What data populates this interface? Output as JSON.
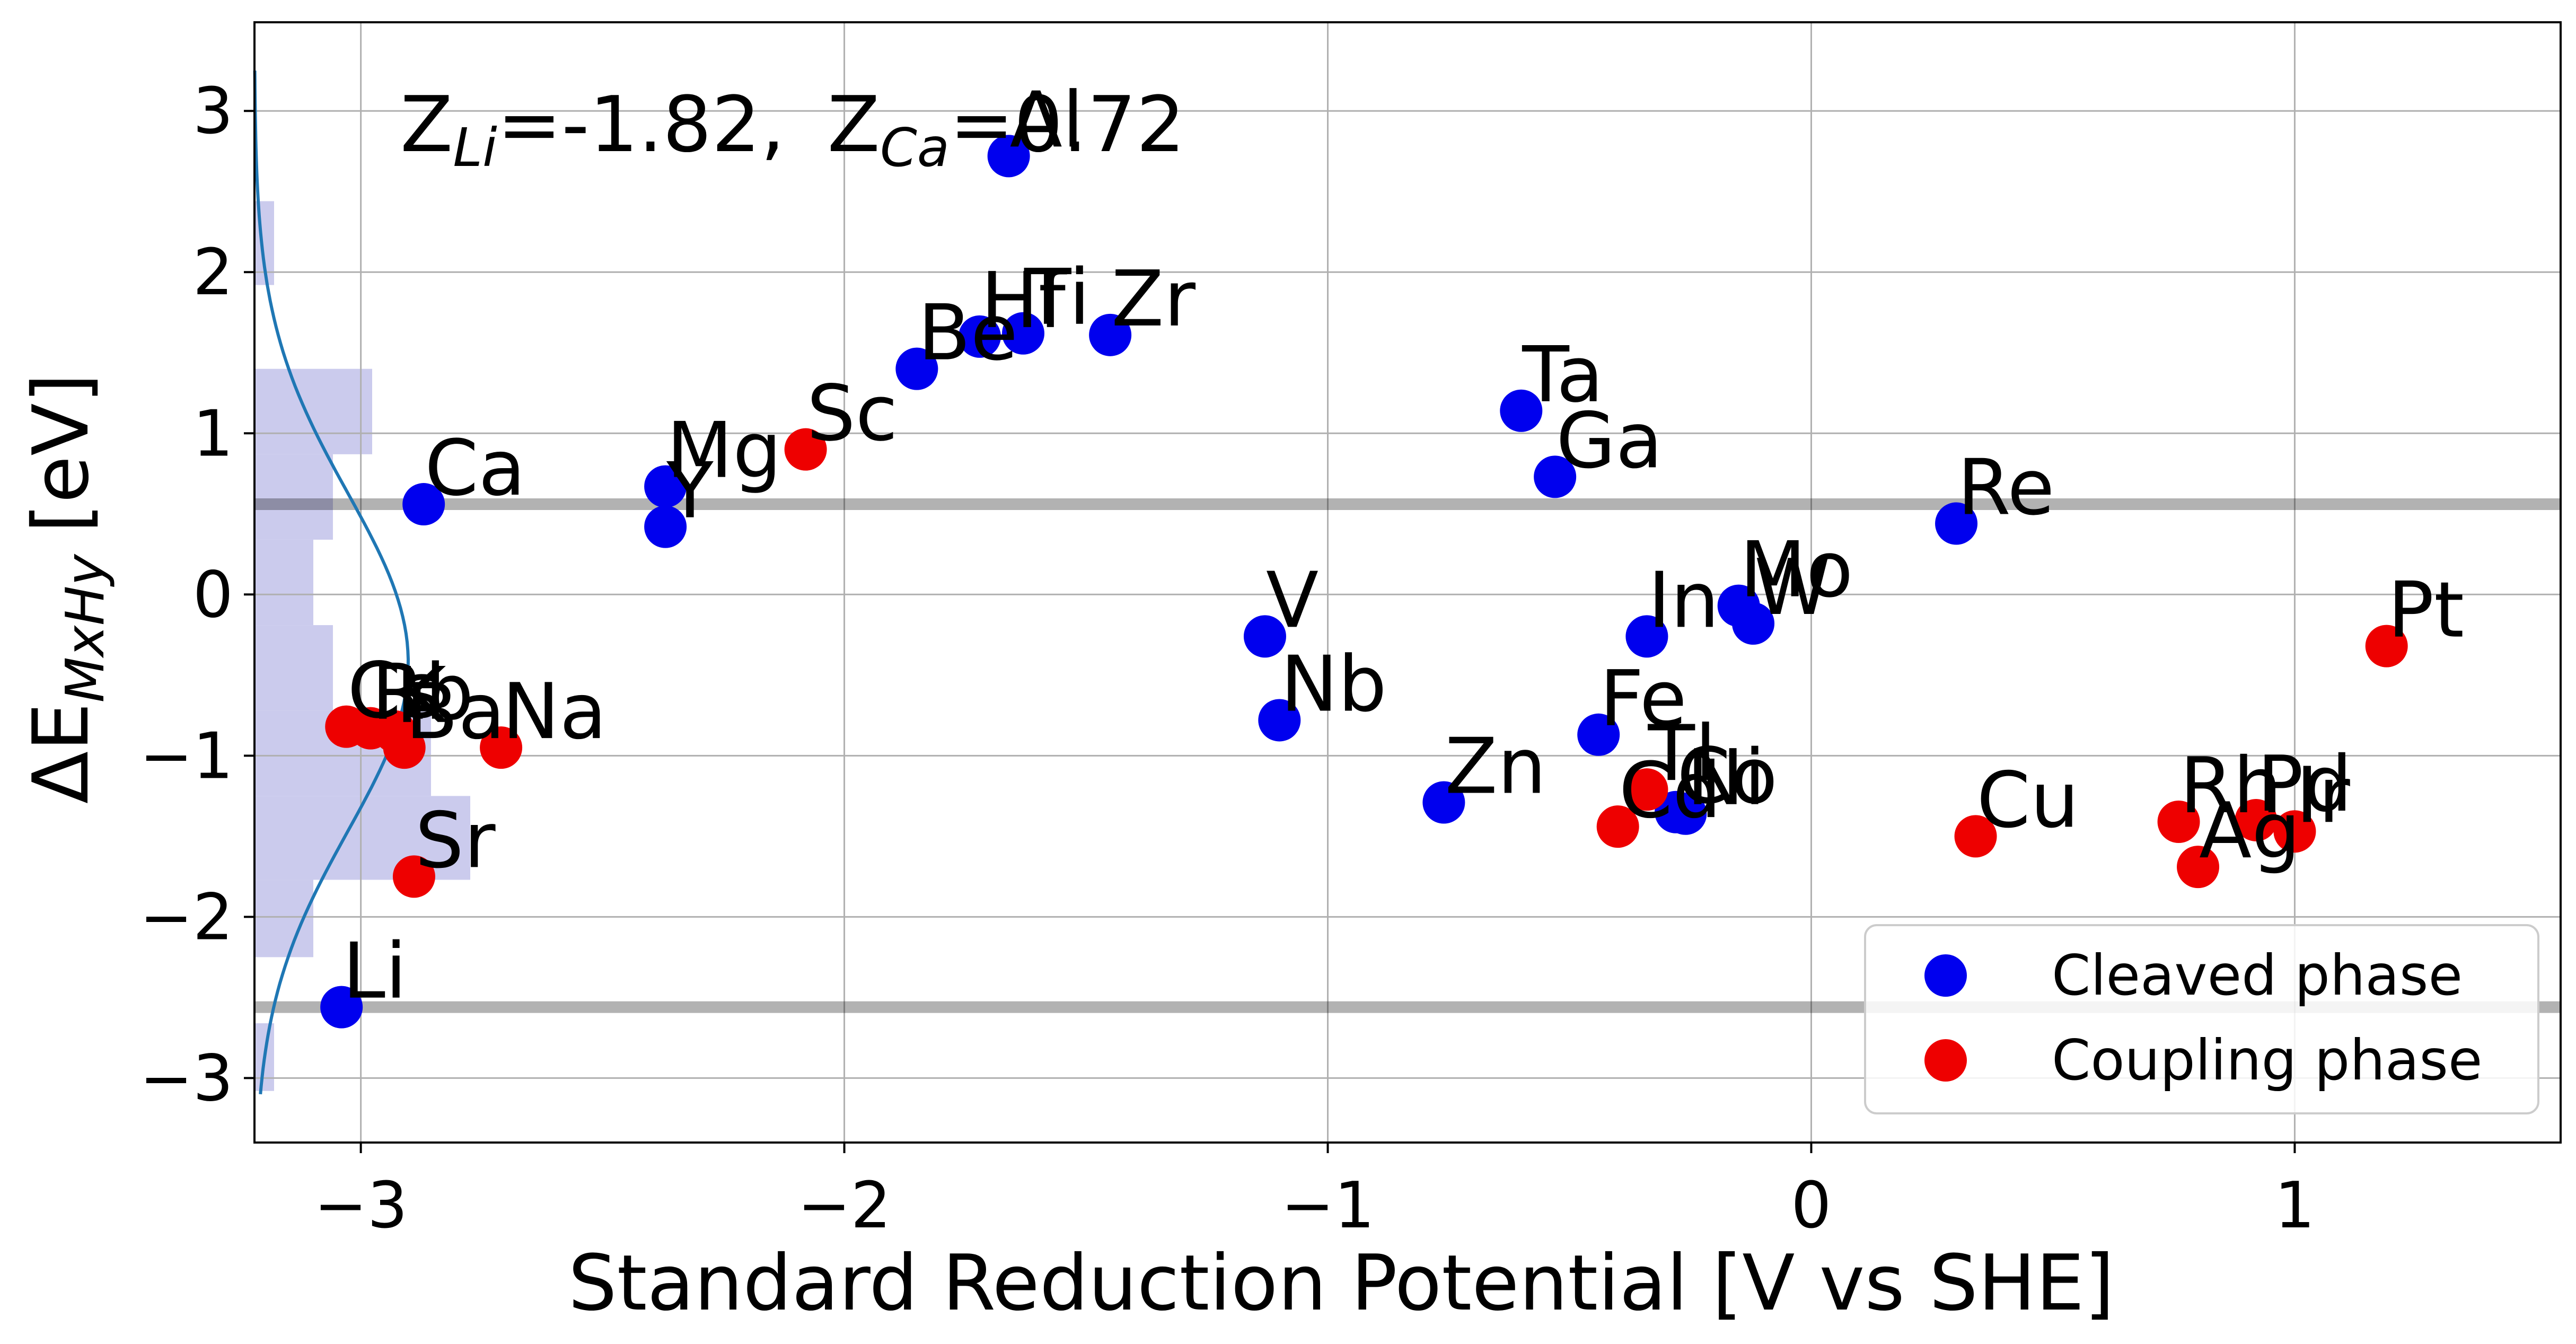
{
  "chart_data": {
    "type": "scatter",
    "xlabel": "Standard Reduction Potential [V vs SHE]",
    "ylabel": "ΔE",
    "ylabel_sub": "MxHy",
    "ylabel_unit": "[eV]",
    "xlim": [
      -3.22,
      1.55
    ],
    "ylim": [
      -3.4,
      3.55
    ],
    "xticks": [
      -3,
      -2,
      -1,
      0,
      1
    ],
    "xtick_labels": [
      "−3",
      "−2",
      "−1",
      "0",
      "1"
    ],
    "yticks": [
      -3,
      -2,
      -1,
      0,
      1,
      2,
      3
    ],
    "ytick_labels": [
      "−3",
      "−2",
      "−1",
      "0",
      "1",
      "2",
      "3"
    ],
    "grid": true,
    "legend_position": "bottom-right",
    "annotation": {
      "z_li": "Z",
      "z_li_sub": "Li",
      "z_li_val": "=-1.82,",
      "z_ca": "Z",
      "z_ca_sub": "Ca",
      "z_ca_val": "=0.72"
    },
    "hlines": [
      0.56,
      -2.56
    ],
    "histogram": {
      "color": "#c8c8ec",
      "bins": [
        {
          "y0": -3.08,
          "y1": -2.66,
          "count": 1
        },
        {
          "y0": -2.66,
          "y1": -2.25,
          "count": 0
        },
        {
          "y0": -2.25,
          "y1": -1.77,
          "count": 3
        },
        {
          "y0": -1.77,
          "y1": -1.25,
          "count": 11
        },
        {
          "y0": -1.25,
          "y1": -0.72,
          "count": 9
        },
        {
          "y0": -0.72,
          "y1": -0.19,
          "count": 4
        },
        {
          "y0": -0.19,
          "y1": 0.34,
          "count": 3
        },
        {
          "y0": 0.34,
          "y1": 0.87,
          "count": 4
        },
        {
          "y0": 0.87,
          "y1": 1.4,
          "count": 6
        },
        {
          "y0": 1.4,
          "y1": 1.92,
          "count": 0
        },
        {
          "y0": 1.92,
          "y1": 2.44,
          "count": 1
        }
      ]
    },
    "series": [
      {
        "name": "Cleaved phase",
        "color": "#0000ee",
        "points": [
          {
            "label": "Li",
            "x": -3.04,
            "y": -2.56
          },
          {
            "label": "Ca",
            "x": -2.87,
            "y": 0.56
          },
          {
            "label": "Mg",
            "x": -2.37,
            "y": 0.67
          },
          {
            "label": "Y",
            "x": -2.37,
            "y": 0.42
          },
          {
            "label": "Be",
            "x": -1.85,
            "y": 1.4
          },
          {
            "label": "Hf",
            "x": -1.72,
            "y": 1.6
          },
          {
            "label": "Ti",
            "x": -1.63,
            "y": 1.62
          },
          {
            "label": "Zr",
            "x": -1.45,
            "y": 1.61
          },
          {
            "label": "Al",
            "x": -1.66,
            "y": 2.72
          },
          {
            "label": "V",
            "x": -1.13,
            "y": -0.26
          },
          {
            "label": "Nb",
            "x": -1.1,
            "y": -0.78
          },
          {
            "label": "Zn",
            "x": -0.76,
            "y": -1.29
          },
          {
            "label": "Ta",
            "x": -0.6,
            "y": 1.14
          },
          {
            "label": "Ga",
            "x": -0.53,
            "y": 0.73
          },
          {
            "label": "Fe",
            "x": -0.44,
            "y": -0.87
          },
          {
            "label": "In",
            "x": -0.34,
            "y": -0.26
          },
          {
            "label": "Co",
            "x": -0.28,
            "y": -1.35
          },
          {
            "label": "Ni",
            "x": -0.26,
            "y": -1.36
          },
          {
            "label": "Mo",
            "x": -0.15,
            "y": -0.07
          },
          {
            "label": "W",
            "x": -0.12,
            "y": -0.18
          },
          {
            "label": "Re",
            "x": 0.3,
            "y": 0.44
          }
        ]
      },
      {
        "name": "Coupling phase",
        "color": "#ee0000",
        "points": [
          {
            "label": "Cs",
            "x": -3.03,
            "y": -0.82
          },
          {
            "label": "Rb",
            "x": -2.98,
            "y": -0.83
          },
          {
            "label": "K",
            "x": -2.93,
            "y": -0.85
          },
          {
            "label": "Ba",
            "x": -2.91,
            "y": -0.95
          },
          {
            "label": "Sr",
            "x": -2.89,
            "y": -1.75
          },
          {
            "label": "Na",
            "x": -2.71,
            "y": -0.95
          },
          {
            "label": "Sc",
            "x": -2.08,
            "y": 0.9
          },
          {
            "label": "Cd",
            "x": -0.4,
            "y": -1.44
          },
          {
            "label": "Tl",
            "x": -0.34,
            "y": -1.21
          },
          {
            "label": "Cu",
            "x": 0.34,
            "y": -1.5
          },
          {
            "label": "Rh",
            "x": 0.76,
            "y": -1.41
          },
          {
            "label": "Ag",
            "x": 0.8,
            "y": -1.69
          },
          {
            "label": "Pd",
            "x": 0.92,
            "y": -1.4
          },
          {
            "label": "Ir",
            "x": 1.0,
            "y": -1.47
          },
          {
            "label": "Pt",
            "x": 1.19,
            "y": -0.32
          }
        ]
      }
    ]
  }
}
